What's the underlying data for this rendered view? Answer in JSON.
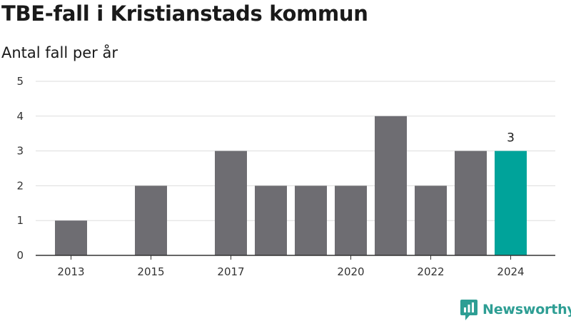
{
  "title": "TBE-fall i Kristianstads kommun",
  "subtitle": "Antal fall per år",
  "brand": {
    "name": "Newsworthy",
    "logo_icon": "newsworthy-logo-icon",
    "color": "#2e9e94"
  },
  "colors": {
    "bar": "#6e6d72",
    "highlight": "#00a39a",
    "grid": "#dddddd",
    "axis": "#333333"
  },
  "chart_data": {
    "type": "bar",
    "categories": [
      "2013",
      "2014",
      "2015",
      "2016",
      "2017",
      "2018",
      "2019",
      "2020",
      "2021",
      "2022",
      "2023",
      "2024"
    ],
    "values": [
      1,
      0,
      2,
      0,
      3,
      2,
      2,
      2,
      4,
      2,
      3,
      3
    ],
    "x_tick_labels": [
      "2013",
      "2015",
      "2017",
      "2020",
      "2022",
      "2024"
    ],
    "ylim": [
      0,
      5
    ],
    "yticks": [
      0,
      1,
      2,
      3,
      4,
      5
    ],
    "highlight_category": "2024",
    "data_labels": [
      {
        "category": "2024",
        "text": "3"
      }
    ],
    "grid": "horizontal",
    "legend": "none",
    "xlabel": "",
    "ylabel": ""
  }
}
